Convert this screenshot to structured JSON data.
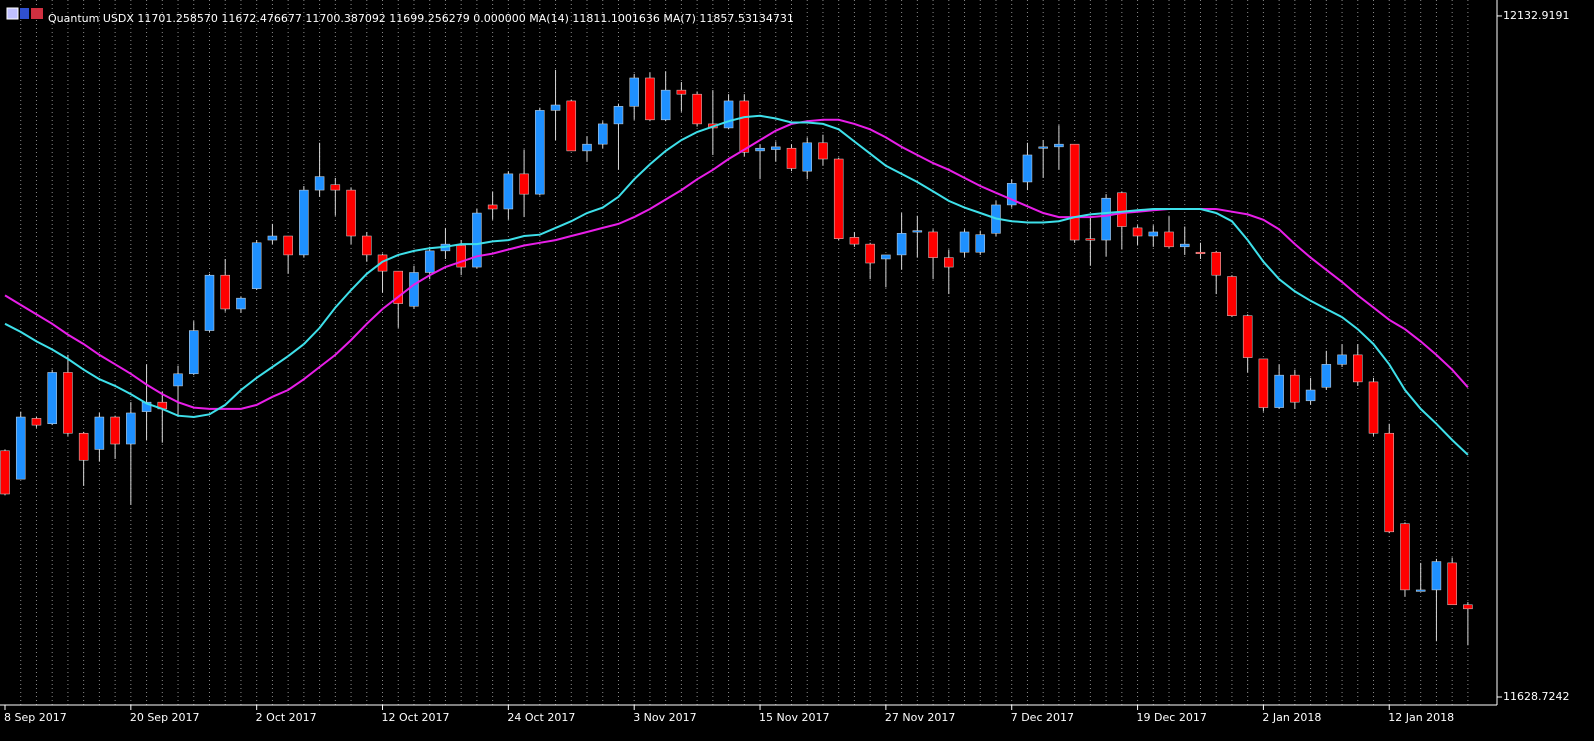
{
  "chart_data": {
    "type": "candlestick",
    "title": "Quantum USDX 11701.258570 11672.476677 11700.387092 11699.256279 0.000000 MA(14) 11811.1001636 MA(7) 11857.53134731",
    "categories": [
      "8 Sep 2017",
      null,
      null,
      null,
      null,
      null,
      null,
      null,
      "20 Sep 2017",
      null,
      null,
      null,
      null,
      null,
      null,
      null,
      "2 Oct 2017",
      null,
      null,
      null,
      null,
      null,
      null,
      null,
      "12 Oct 2017",
      null,
      null,
      null,
      null,
      null,
      null,
      null,
      "24 Oct 2017",
      null,
      null,
      null,
      null,
      null,
      null,
      null,
      "3 Nov 2017",
      null,
      null,
      null,
      null,
      null,
      null,
      null,
      "15 Nov 2017",
      null,
      null,
      null,
      null,
      null,
      null,
      null,
      "27 Nov 2017",
      null,
      null,
      null,
      null,
      null,
      null,
      null,
      "7 Dec 2017",
      null,
      null,
      null,
      null,
      null,
      null,
      null,
      "19 Dec 2017",
      null,
      null,
      null,
      null,
      null,
      null,
      null,
      "2 Jan 2018",
      null,
      null,
      null,
      null,
      null,
      null,
      null,
      "12 Jan 2018",
      null,
      null,
      null,
      null,
      null
    ],
    "open": [
      11811,
      11790,
      11835,
      11831,
      11869,
      11824,
      11812,
      11836,
      11816,
      11840,
      11847,
      11859,
      11868,
      11900,
      11941,
      11916,
      11931,
      11967,
      11970,
      11956,
      12004,
      12008,
      12004,
      11970,
      11956,
      11944,
      11918,
      11943,
      11959,
      11963,
      11947,
      11993,
      11990,
      12016,
      12001,
      12063,
      12070,
      12033,
      12038,
      12053,
      12066,
      12087,
      12056,
      12078,
      12075,
      12053,
      12050,
      12070,
      12033,
      12034,
      12035,
      12018,
      12039,
      12027,
      11969,
      11964,
      11953,
      11956,
      11973,
      11973,
      11954,
      11958,
      11958,
      11972,
      11993,
      12010,
      12035,
      12036,
      12038,
      11968,
      11967,
      12002,
      11976,
      11970,
      11973,
      11962,
      11958,
      11958,
      11940,
      11911,
      11879,
      11843,
      11867,
      11848,
      11858,
      11875,
      11882,
      11862,
      11824,
      11757,
      11708,
      11708,
      11728,
      11697
    ],
    "high": [
      11812,
      11840,
      11836,
      11871,
      11882,
      11825,
      11839,
      11837,
      11847,
      11875,
      11855,
      11874,
      11907,
      11942,
      11953,
      11925,
      11967,
      11979,
      11970,
      12007,
      12039,
      12013,
      12006,
      11973,
      11957,
      11944,
      11948,
      11962,
      11976,
      11967,
      11990,
      12003,
      12018,
      12034,
      12065,
      12093,
      12071,
      12044,
      12055,
      12068,
      12090,
      12091,
      12092,
      12084,
      12077,
      12078,
      12075,
      12075,
      12038,
      12040,
      12038,
      12043,
      12045,
      12028,
      11973,
      11965,
      11956,
      11987,
      11985,
      11975,
      11960,
      11975,
      11974,
      11996,
      12012,
      12039,
      12041,
      12052,
      12038,
      11985,
      12001,
      12003,
      11978,
      11978,
      11985,
      11977,
      11965,
      11959,
      11941,
      11912,
      11879,
      11875,
      11871,
      11865,
      11885,
      11890,
      11890,
      11865,
      11831,
      11758,
      11728,
      11731,
      11732,
      11699
    ],
    "low": [
      11778,
      11790,
      11828,
      11830,
      11822,
      11785,
      11803,
      11805,
      11771,
      11819,
      11817,
      11836,
      11867,
      11899,
      11914,
      11913,
      11930,
      11964,
      11942,
      11954,
      11999,
      11985,
      11964,
      11951,
      11928,
      11902,
      11916,
      11938,
      11953,
      11941,
      11946,
      11982,
      11982,
      11984,
      12000,
      12041,
      12033,
      12025,
      12035,
      12019,
      12056,
      12055,
      12055,
      12062,
      12051,
      12030,
      12049,
      12029,
      12012,
      12025,
      12018,
      12012,
      12022,
      11967,
      11962,
      11938,
      11932,
      11945,
      11954,
      11938,
      11927,
      11954,
      11956,
      11970,
      11991,
      12004,
      12013,
      12019,
      11965,
      11948,
      11955,
      11960,
      11963,
      11962,
      11961,
      11956,
      11953,
      11927,
      11910,
      11869,
      11840,
      11842,
      11842,
      11845,
      11856,
      11873,
      11859,
      11822,
      11750,
      11703,
      11707,
      11670,
      11697,
      11667
    ],
    "close": [
      11779,
      11836,
      11830,
      11869,
      11824,
      11804,
      11836,
      11816,
      11839,
      11847,
      11842,
      11868,
      11900,
      11941,
      11916,
      11924,
      11965,
      11970,
      11956,
      12004,
      12014,
      12004,
      11970,
      11956,
      11944,
      11920,
      11943,
      11959,
      11964,
      11947,
      11987,
      11990,
      12016,
      12001,
      12063,
      12067,
      12033,
      12038,
      12053,
      12066,
      12087,
      12056,
      12078,
      12075,
      12053,
      12050,
      12070,
      12032,
      12035,
      12036,
      12020,
      12039,
      12027,
      11968,
      11964,
      11950,
      11956,
      11972,
      11974,
      11954,
      11947,
      11973,
      11971,
      11993,
      12009,
      12030,
      12036,
      12038,
      11967,
      11967,
      11998,
      11977,
      11970,
      11973,
      11962,
      11964,
      11957,
      11941,
      11911,
      11880,
      11843,
      11867,
      11847,
      11856,
      11875,
      11882,
      11862,
      11824,
      11751,
      11708,
      11708,
      11729,
      11697,
      11694
    ],
    "up_color": "#1e90ff",
    "down_color": "#ff0000",
    "wick_color": "#d8d8d8",
    "lines": [
      {
        "color": "#e81ee8",
        "values": [
          11926,
          11919,
          11912,
          11905,
          11897,
          11890,
          11882,
          11875,
          11868,
          11860,
          11853,
          11847,
          11843,
          11842,
          11842,
          11842,
          11845,
          11851,
          11856,
          11864,
          11873,
          11882,
          11893,
          11905,
          11916,
          11925,
          11934,
          11941,
          11947,
          11951,
          11955,
          11957,
          11960,
          11963,
          11965,
          11967,
          11970,
          11973,
          11976,
          11979,
          11984,
          11990,
          11997,
          12004,
          12012,
          12019,
          12027,
          12034,
          12041,
          12048,
          12053,
          12055,
          12056,
          12056,
          12053,
          12049,
          12043,
          12036,
          12030,
          12024,
          12019,
          12013,
          12007,
          12002,
          11997,
          11992,
          11987,
          11984,
          11984,
          11984,
          11985,
          11987,
          11988,
          11989,
          11990,
          11990,
          11990,
          11990,
          11988,
          11986,
          11982,
          11975,
          11964,
          11954,
          11945,
          11936,
          11926,
          11917,
          11908,
          11901,
          11892,
          11882,
          11871,
          11858
        ]
      },
      {
        "color": "#3ee0ea",
        "values": [
          11905,
          11899,
          11892,
          11886,
          11879,
          11871,
          11864,
          11859,
          11853,
          11846,
          11842,
          11837,
          11836,
          11838,
          11845,
          11856,
          11865,
          11873,
          11881,
          11890,
          11902,
          11917,
          11930,
          11942,
          11951,
          11956,
          11959,
          11961,
          11962,
          11964,
          11964,
          11966,
          11967,
          11970,
          11971,
          11976,
          11981,
          11987,
          11991,
          11999,
          12012,
          12023,
          12033,
          12041,
          12047,
          12051,
          12055,
          12058,
          12059,
          12057,
          12054,
          12054,
          12053,
          12049,
          12040,
          12031,
          12022,
          12016,
          12010,
          12003,
          11996,
          11991,
          11987,
          11983,
          11981,
          11980,
          11980,
          11981,
          11984,
          11986,
          11987,
          11988,
          11989,
          11990,
          11990,
          11990,
          11990,
          11987,
          11981,
          11967,
          11951,
          11938,
          11929,
          11922,
          11916,
          11910,
          11901,
          11890,
          11875,
          11856,
          11842,
          11831,
          11819,
          11808
        ]
      }
    ],
    "ylim": [
      11622.8,
      12138.8
    ],
    "yticks": [
      11628.7242,
      12132.9191
    ],
    "grid": true
  }
}
